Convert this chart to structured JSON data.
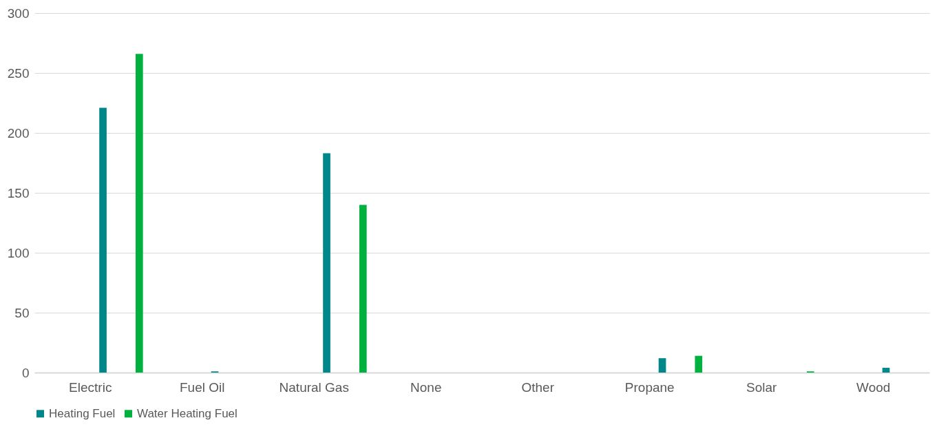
{
  "chart_data": {
    "type": "bar",
    "categories": [
      "Electric",
      "Fuel Oil",
      "Natural Gas",
      "None",
      "Other",
      "Propane",
      "Solar",
      "Wood"
    ],
    "series": [
      {
        "name": "Heating Fuel",
        "color": "#00878a",
        "values": [
          221,
          1,
          183,
          0,
          0,
          12,
          0,
          4
        ]
      },
      {
        "name": "Water Heating Fuel",
        "color": "#00b140",
        "values": [
          266,
          0,
          140,
          0,
          0,
          14,
          1,
          0
        ]
      }
    ],
    "ylim": [
      0,
      300
    ],
    "yticks": [
      0,
      50,
      100,
      150,
      200,
      250,
      300
    ],
    "grid": "y",
    "legend": "bottom"
  }
}
